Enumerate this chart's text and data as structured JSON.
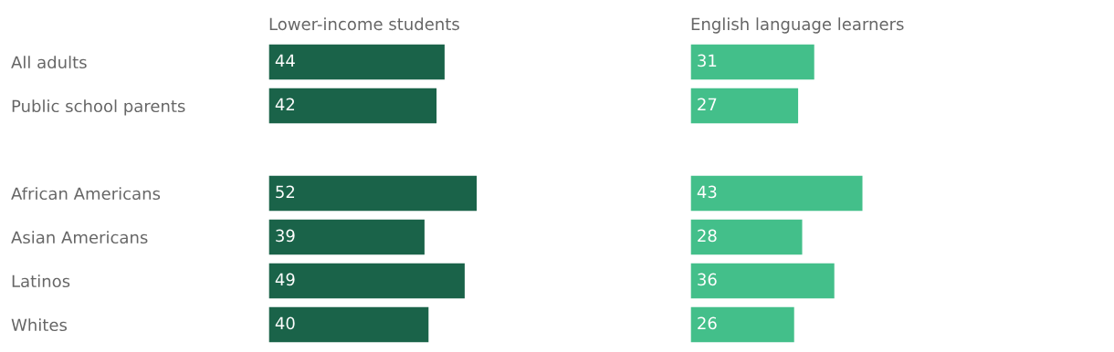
{
  "chart_data": [
    {
      "type": "bar",
      "orientation": "horizontal",
      "title": "Lower-income students",
      "categories": [
        "All adults",
        "Public school parents",
        null,
        "African Americans",
        "Asian Americans",
        "Latinos",
        "Whites"
      ],
      "values": [
        44,
        42,
        null,
        52,
        39,
        49,
        40
      ],
      "color": "#1a6349",
      "data_labels": true,
      "tick_labels": "y"
    },
    {
      "type": "bar",
      "orientation": "horizontal",
      "title": "English language learners",
      "categories": [
        null,
        null,
        null,
        null,
        null,
        null,
        null
      ],
      "values": [
        31,
        27,
        null,
        43,
        28,
        36,
        26
      ],
      "color": "#43bf8a",
      "data_labels": true,
      "tick_labels": false
    }
  ]
}
